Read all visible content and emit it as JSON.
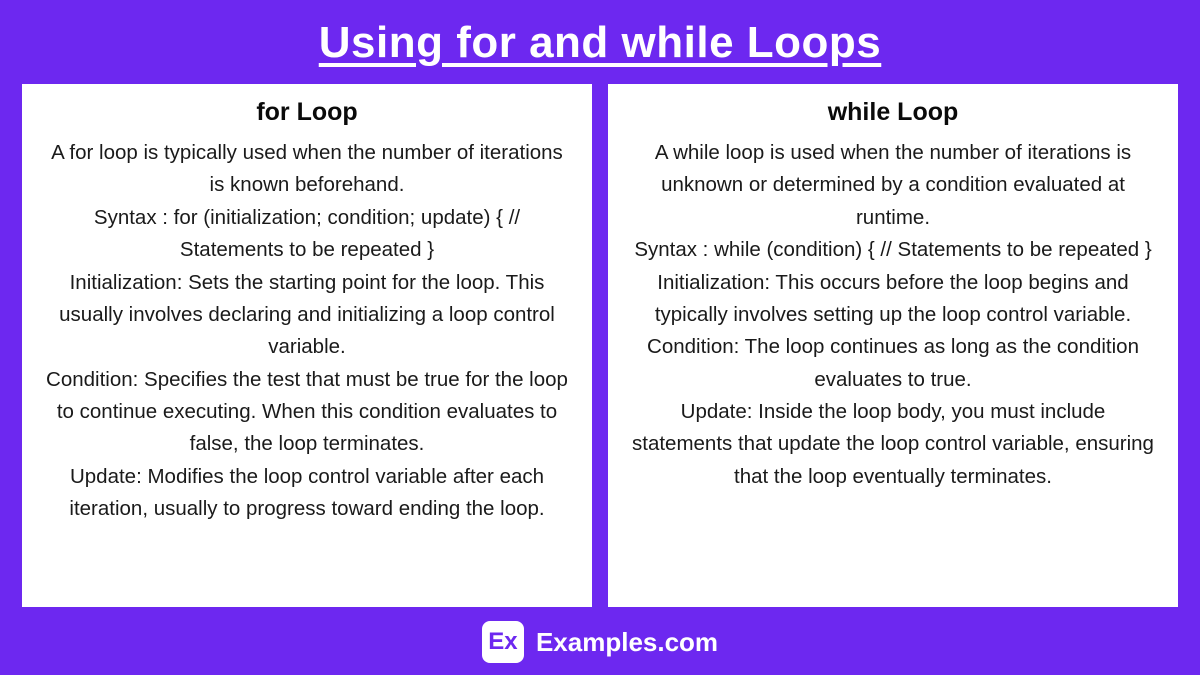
{
  "title": "Using for and while Loops",
  "cards": [
    {
      "heading": "for Loop",
      "body": "A for loop is typically used when the number of iterations is known beforehand.\nSyntax : for (initialization; condition; update) { // Statements to be repeated }\nInitialization: Sets the starting point for the loop. This usually involves declaring and initializing a loop control variable.\nCondition: Specifies the test that must be true for the loop to continue executing. When this condition evaluates to false, the loop terminates.\nUpdate: Modifies the loop control variable after each iteration, usually to progress toward ending the loop."
    },
    {
      "heading": "while Loop",
      "body": "A while loop is used when the number of iterations is unknown or determined by a condition evaluated at runtime.\nSyntax : while (condition) { // Statements to be repeated }\nInitialization: This occurs before the loop begins and typically involves setting up the loop control variable.\nCondition: The loop continues as long as the condition evaluates to true.\nUpdate: Inside the loop body, you must include statements that update the loop control variable, ensuring that the loop eventually terminates."
    }
  ],
  "footer": {
    "logo_text": "Ex",
    "site": "Examples.com"
  },
  "colors": {
    "background": "#6d28f0",
    "card_bg": "#ffffff",
    "title_text": "#ffffff",
    "body_text": "#1a1a1a"
  }
}
